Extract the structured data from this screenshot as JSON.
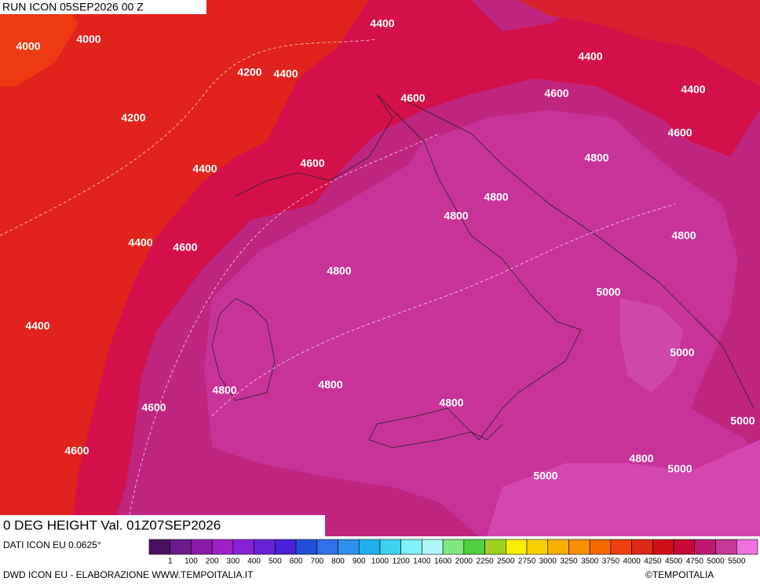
{
  "header": {
    "run": "RUN ICON 05SEP2026 00 Z",
    "field": "0 DEG HEIGHT Val. 01Z07SEP2026"
  },
  "contour_labels": [
    4000,
    4000,
    4400,
    4400,
    4200,
    4400,
    4600,
    4600,
    4400,
    4200,
    4600,
    4400,
    4600,
    4800,
    4800,
    4800,
    4800,
    4400,
    4600,
    4800,
    5000,
    4400,
    5000,
    4800,
    4800,
    4800,
    4600,
    5000,
    4600,
    4800,
    5000,
    5000
  ],
  "legend": {
    "labels": [
      1,
      100,
      200,
      300,
      400,
      500,
      600,
      700,
      800,
      900,
      1000,
      1200,
      1400,
      1600,
      2000,
      2250,
      2500,
      2750,
      3000,
      3250,
      3500,
      3750,
      4000,
      4250,
      4500,
      4750,
      5000,
      5500
    ],
    "colors": [
      "#4a1060",
      "#6a1a8a",
      "#8a1aaa",
      "#a020c8",
      "#8a20d8",
      "#6a20d8",
      "#4a20d8",
      "#2050d8",
      "#3070e8",
      "#3090f0",
      "#20b0f0",
      "#40d0f0",
      "#80f0f8",
      "#b0f8f8",
      "#80e880",
      "#50d040",
      "#a0d020",
      "#f8f000",
      "#f8d000",
      "#f8b000",
      "#f89000",
      "#f86800",
      "#f04010",
      "#e02818",
      "#d01018",
      "#c80838",
      "#c01870",
      "#c83898",
      "#f070e0"
    ]
  },
  "footer": {
    "source": "DATI ICON EU 0.0625°",
    "credit": "DWD ICON EU - ELABORAZIONE WWW.TEMPOITALIA.IT",
    "copyright": "©TEMPOITALIA"
  }
}
